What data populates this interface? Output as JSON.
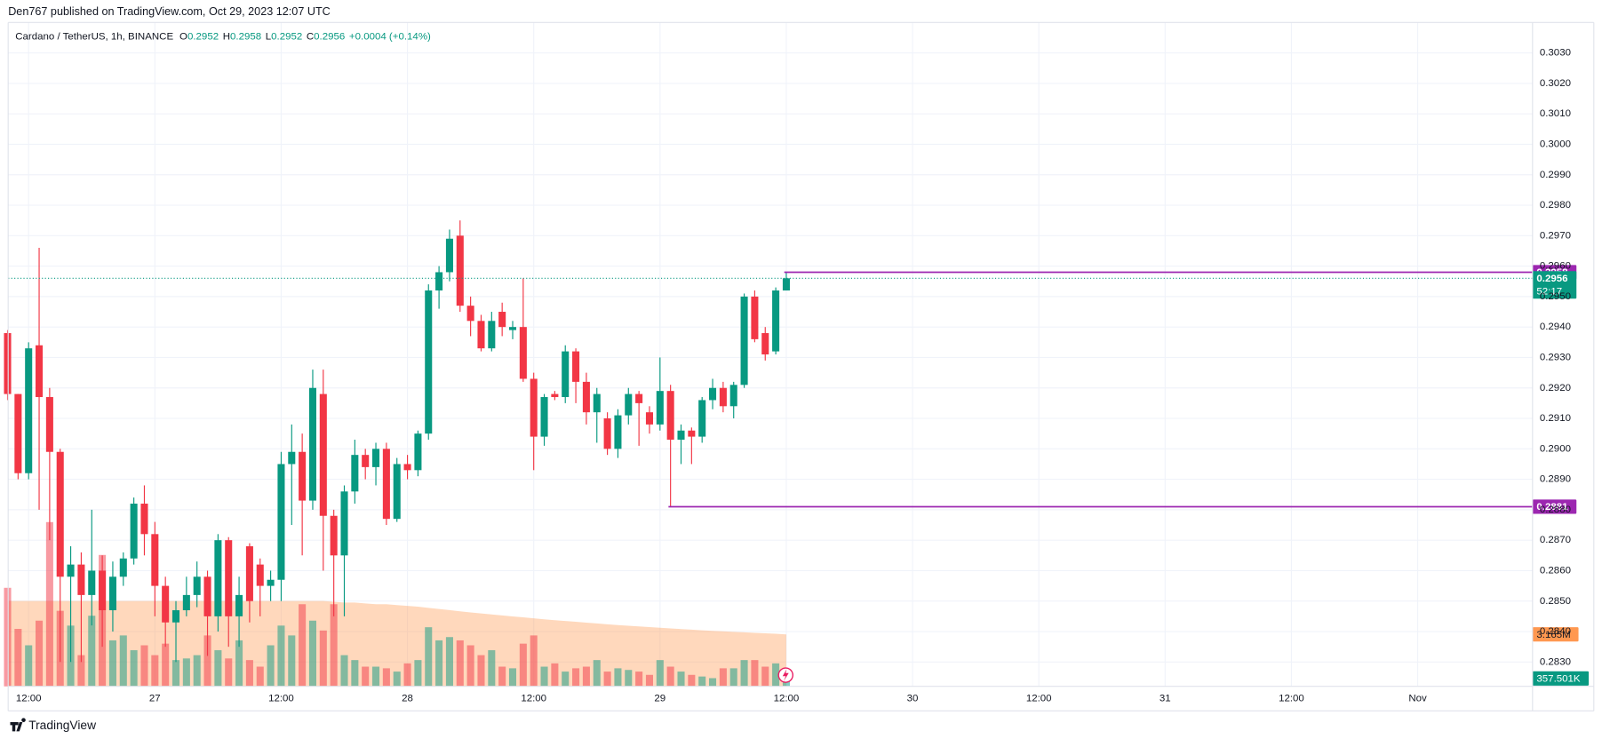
{
  "chart_data": {
    "type": "candlestick",
    "header": "Den767 published on TradingView.com, Oct 29, 2023 12:07 UTC",
    "legend": {
      "symbol": "Cardano / TetherUS, 1h, BINANCE",
      "items": [
        {
          "key": "O",
          "value": "0.2952"
        },
        {
          "key": "H",
          "value": "0.2958"
        },
        {
          "key": "L",
          "value": "0.2952"
        },
        {
          "key": "C",
          "value": "0.2956"
        }
      ],
      "change": "+0.0004 (+0.14%)"
    },
    "footer": "TradingView",
    "categories": [
      null,
      null,
      "12:00",
      null,
      null,
      null,
      null,
      null,
      null,
      null,
      null,
      null,
      null,
      null,
      "27",
      null,
      null,
      null,
      null,
      null,
      null,
      null,
      null,
      null,
      null,
      null,
      "12:00",
      null,
      null,
      null,
      null,
      null,
      null,
      null,
      null,
      null,
      null,
      null,
      "28",
      null,
      null,
      null,
      null,
      null,
      null,
      null,
      null,
      null,
      null,
      null,
      "12:00",
      null,
      null,
      null,
      null,
      null,
      null,
      null,
      null,
      null,
      null,
      null,
      "29",
      null,
      null,
      null,
      null,
      null,
      null,
      null,
      null,
      null,
      null,
      null,
      "12:00"
    ],
    "extra_x_labels": [
      "30",
      "12:00",
      "31",
      "12:00",
      "Nov"
    ],
    "open": [
      0.2938,
      0.2918,
      0.2892,
      0.2934,
      0.2917,
      0.2899,
      0.2858,
      0.2862,
      0.2852,
      0.286,
      0.2847,
      0.2858,
      0.2864,
      0.2882,
      0.2872,
      0.2855,
      0.2843,
      0.2847,
      0.2852,
      0.2858,
      0.2845,
      0.287,
      0.2845,
      0.2868,
      0.2862,
      0.2855,
      0.2857,
      0.2895,
      0.2899,
      0.2883,
      0.2918,
      0.2878,
      0.2865,
      0.2886,
      0.2898,
      0.2894,
      0.29,
      0.2877,
      0.2895,
      0.2893,
      0.2905,
      0.2952,
      0.2958,
      0.297,
      0.2947,
      0.2942,
      0.2933,
      0.2945,
      0.2939,
      0.294,
      0.2923,
      0.2904,
      0.2918,
      0.2917,
      0.2932,
      0.2922,
      0.2912,
      0.291,
      0.29,
      0.2911,
      0.2918,
      0.2912,
      0.2908,
      0.2919,
      0.2903,
      0.2906,
      0.2904,
      0.2916,
      0.292,
      0.2914,
      0.2921,
      0.295,
      0.2938,
      0.2932,
      0.2952
    ],
    "high": [
      0.2939,
      0.2918,
      0.2935,
      0.2966,
      0.292,
      0.29,
      0.2868,
      0.2866,
      0.288,
      0.2865,
      0.2863,
      0.2866,
      0.2884,
      0.2888,
      0.2876,
      0.2858,
      0.285,
      0.2858,
      0.2863,
      0.286,
      0.2872,
      0.2871,
      0.2858,
      0.2869,
      0.2864,
      0.286,
      0.2899,
      0.2908,
      0.2905,
      0.2926,
      0.2926,
      0.288,
      0.2888,
      0.2903,
      0.29,
      0.2902,
      0.2902,
      0.2897,
      0.2898,
      0.2906,
      0.2954,
      0.296,
      0.2972,
      0.2975,
      0.295,
      0.2944,
      0.2945,
      0.2948,
      0.2942,
      0.2956,
      0.2925,
      0.2918,
      0.2919,
      0.2934,
      0.2933,
      0.2925,
      0.292,
      0.2912,
      0.2913,
      0.292,
      0.2919,
      0.2914,
      0.293,
      0.2921,
      0.2908,
      0.2907,
      0.2917,
      0.2923,
      0.2922,
      0.2922,
      0.2951,
      0.2952,
      0.294,
      0.2953,
      0.2958
    ],
    "low": [
      0.2916,
      0.289,
      0.289,
      0.288,
      0.287,
      0.283,
      0.283,
      0.283,
      0.2842,
      0.2835,
      0.284,
      0.2855,
      0.2862,
      0.2865,
      0.2845,
      0.2835,
      0.283,
      0.2845,
      0.2848,
      0.2832,
      0.284,
      0.2835,
      0.2835,
      0.2843,
      0.2845,
      0.285,
      0.285,
      0.2875,
      0.2865,
      0.288,
      0.286,
      0.2845,
      0.2845,
      0.2882,
      0.289,
      0.2888,
      0.2875,
      0.2876,
      0.289,
      0.2891,
      0.2903,
      0.2946,
      0.2955,
      0.2945,
      0.2937,
      0.2932,
      0.2932,
      0.2937,
      0.2936,
      0.2922,
      0.2893,
      0.2901,
      0.2916,
      0.2915,
      0.2915,
      0.2908,
      0.2902,
      0.2898,
      0.2897,
      0.2908,
      0.2901,
      0.2905,
      0.2906,
      0.2881,
      0.2895,
      0.2895,
      0.2902,
      0.2913,
      0.2912,
      0.291,
      0.292,
      0.2935,
      0.2929,
      0.2931,
      0.2952
    ],
    "close": [
      0.2918,
      0.2892,
      0.2933,
      0.2917,
      0.2899,
      0.2858,
      0.2862,
      0.2852,
      0.286,
      0.2847,
      0.2858,
      0.2864,
      0.2882,
      0.2872,
      0.2855,
      0.2843,
      0.2847,
      0.2852,
      0.2858,
      0.2845,
      0.287,
      0.2845,
      0.2852,
      0.285,
      0.2855,
      0.2857,
      0.2895,
      0.2899,
      0.2883,
      0.292,
      0.2878,
      0.2865,
      0.2886,
      0.2898,
      0.2894,
      0.29,
      0.2877,
      0.2895,
      0.2893,
      0.2905,
      0.2952,
      0.2958,
      0.2969,
      0.2947,
      0.2942,
      0.2933,
      0.2942,
      0.294,
      0.294,
      0.2923,
      0.2904,
      0.2917,
      0.2917,
      0.2932,
      0.2922,
      0.2912,
      0.2918,
      0.29,
      0.2911,
      0.2918,
      0.2915,
      0.2908,
      0.2919,
      0.2903,
      0.2906,
      0.2904,
      0.2916,
      0.292,
      0.2914,
      0.2921,
      0.295,
      0.2936,
      0.2931,
      0.2952,
      0.2956
    ],
    "volume": [
      6.0,
      3.5,
      2.5,
      4.0,
      10.0,
      4.6,
      3.7,
      1.9,
      4.3,
      8.0,
      2.8,
      3.1,
      2.2,
      2.5,
      1.9,
      2.6,
      1.6,
      1.7,
      1.9,
      3.1,
      2.2,
      1.7,
      2.8,
      1.6,
      1.2,
      2.5,
      3.7,
      3.1,
      5.0,
      4.0,
      3.4,
      5.0,
      1.9,
      1.6,
      1.2,
      1.2,
      1.1,
      0.9,
      1.4,
      1.6,
      3.6,
      2.8,
      3.0,
      2.8,
      2.5,
      1.9,
      2.2,
      1.2,
      1.1,
      2.6,
      3.1,
      1.2,
      1.4,
      0.9,
      1.1,
      1.2,
      1.6,
      0.9,
      1.1,
      1.0,
      0.9,
      0.7,
      1.6,
      1.2,
      0.9,
      0.7,
      0.6,
      0.5,
      1.1,
      1.1,
      1.6,
      1.6,
      1.2,
      1.4,
      0.357501
    ],
    "volume_ma": [
      5.2,
      5.2,
      5.2,
      5.2,
      5.2,
      5.2,
      5.2,
      5.2,
      5.2,
      5.2,
      5.2,
      5.2,
      5.2,
      5.2,
      5.2,
      5.2,
      5.2,
      5.2,
      5.2,
      5.2,
      5.2,
      5.2,
      5.2,
      5.2,
      5.2,
      5.2,
      5.2,
      5.2,
      5.2,
      5.2,
      5.2,
      5.15,
      5.1,
      5.1,
      5.05,
      5.0,
      5.0,
      4.95,
      4.9,
      4.85,
      4.78,
      4.71,
      4.64,
      4.57,
      4.5,
      4.44,
      4.38,
      4.32,
      4.26,
      4.2,
      4.14,
      4.08,
      4.03,
      3.98,
      3.93,
      3.88,
      3.83,
      3.78,
      3.73,
      3.69,
      3.65,
      3.61,
      3.57,
      3.53,
      3.49,
      3.45,
      3.41,
      3.38,
      3.35,
      3.32,
      3.29,
      3.26,
      3.23,
      3.2,
      3.165
    ],
    "volume_ma_label": "3.165M",
    "volume_last_label": "357.501K",
    "volume_lim": [
      0,
      12
    ],
    "up_color": "#089981",
    "down_color": "#f23645",
    "volume_ma_color": "#ff9850",
    "ylim": [
      0.2822,
      0.304
    ],
    "yticks": [
      {
        "value": 0.283,
        "label": "0.2830"
      },
      {
        "value": 0.284,
        "label": "0.2840"
      },
      {
        "value": 0.285,
        "label": "0.2850"
      },
      {
        "value": 0.286,
        "label": "0.2860"
      },
      {
        "value": 0.287,
        "label": "0.2870"
      },
      {
        "value": 0.288,
        "label": "0.2880"
      },
      {
        "value": 0.289,
        "label": "0.2890"
      },
      {
        "value": 0.29,
        "label": "0.2900"
      },
      {
        "value": 0.291,
        "label": "0.2910"
      },
      {
        "value": 0.292,
        "label": "0.2920"
      },
      {
        "value": 0.293,
        "label": "0.2930"
      },
      {
        "value": 0.294,
        "label": "0.2940"
      },
      {
        "value": 0.295,
        "label": "0.2950"
      },
      {
        "value": 0.296,
        "label": "0.2960"
      },
      {
        "value": 0.297,
        "label": "0.2970"
      },
      {
        "value": 0.298,
        "label": "0.2980"
      },
      {
        "value": 0.299,
        "label": "0.2990"
      },
      {
        "value": 0.3,
        "label": "0.3000"
      },
      {
        "value": 0.301,
        "label": "0.3010"
      },
      {
        "value": 0.302,
        "label": "0.3020"
      },
      {
        "value": 0.303,
        "label": "0.3030"
      }
    ],
    "hlines": [
      {
        "value": 0.2958,
        "color": "#9c27b0"
      },
      {
        "value": 0.2881,
        "color": "#9c27b0"
      }
    ],
    "last_price": 0.2956,
    "countdown": "52:17",
    "grid": true
  }
}
